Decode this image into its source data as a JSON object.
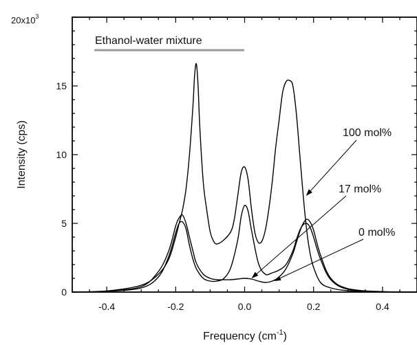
{
  "chart_data": {
    "type": "line",
    "title": "Ethanol-water mixture",
    "xlabel": {
      "text": "Frequency (cm",
      "sup": "-1",
      "suffix": ")"
    },
    "ylabel": "Intensity (cps)",
    "y_multiplier": {
      "base": "20x10",
      "exp": "3"
    },
    "xlim": [
      -0.5,
      0.5
    ],
    "ylim": [
      0,
      20000
    ],
    "x_ticks": [
      {
        "value": -0.4,
        "label": "-0.4"
      },
      {
        "value": -0.2,
        "label": "-0.2"
      },
      {
        "value": 0.0,
        "label": "0.0"
      },
      {
        "value": 0.2,
        "label": "0.2"
      },
      {
        "value": 0.4,
        "label": "0.4"
      }
    ],
    "y_ticks": [
      {
        "value": 0,
        "label": "0"
      },
      {
        "value": 5000,
        "label": "5"
      },
      {
        "value": 10000,
        "label": "10"
      },
      {
        "value": 15000,
        "label": "15"
      }
    ],
    "grid": false,
    "series": [
      {
        "name": "100 mol%",
        "x": [
          -0.5,
          -0.4,
          -0.3,
          -0.25,
          -0.22,
          -0.2,
          -0.19,
          -0.18,
          -0.17,
          -0.16,
          -0.15,
          -0.145,
          -0.14,
          -0.135,
          -0.13,
          -0.12,
          -0.11,
          -0.1,
          -0.09,
          -0.08,
          -0.06,
          -0.04,
          -0.03,
          -0.02,
          -0.01,
          0.0,
          0.01,
          0.02,
          0.03,
          0.04,
          0.05,
          0.06,
          0.07,
          0.08,
          0.09,
          0.1,
          0.11,
          0.12,
          0.13,
          0.14,
          0.15,
          0.16,
          0.17,
          0.18,
          0.19,
          0.2,
          0.22,
          0.25,
          0.3,
          0.4,
          0.5
        ],
        "y": [
          0,
          80,
          500,
          1300,
          2400,
          4000,
          5000,
          6000,
          7500,
          10000,
          13500,
          15800,
          16600,
          15000,
          12000,
          8000,
          6000,
          4400,
          3700,
          3500,
          3800,
          4400,
          5300,
          7000,
          8700,
          9100,
          8200,
          6000,
          4300,
          3600,
          3700,
          4500,
          6000,
          8000,
          10500,
          12500,
          14500,
          15300,
          15400,
          15000,
          13000,
          10000,
          7000,
          4500,
          2800,
          1800,
          700,
          300,
          100,
          30,
          0
        ]
      },
      {
        "name": "17 mol%",
        "x": [
          -0.5,
          -0.4,
          -0.3,
          -0.25,
          -0.22,
          -0.2,
          -0.19,
          -0.18,
          -0.17,
          -0.16,
          -0.15,
          -0.14,
          -0.12,
          -0.1,
          -0.08,
          -0.06,
          -0.04,
          -0.02,
          -0.01,
          0.0,
          0.01,
          0.02,
          0.04,
          0.06,
          0.08,
          0.1,
          0.12,
          0.14,
          0.15,
          0.16,
          0.17,
          0.18,
          0.19,
          0.2,
          0.22,
          0.25,
          0.3,
          0.4,
          0.5
        ],
        "y": [
          0,
          60,
          300,
          1100,
          2600,
          4300,
          5000,
          5100,
          4600,
          3400,
          2400,
          1700,
          1000,
          800,
          800,
          1000,
          1800,
          3800,
          5500,
          6300,
          5900,
          4500,
          2100,
          1300,
          1400,
          1600,
          2000,
          3000,
          3800,
          4500,
          4900,
          5000,
          4700,
          4000,
          2400,
          900,
          200,
          30,
          0
        ]
      },
      {
        "name": "0 mol%",
        "x": [
          -0.5,
          -0.4,
          -0.3,
          -0.25,
          -0.22,
          -0.2,
          -0.19,
          -0.18,
          -0.17,
          -0.16,
          -0.15,
          -0.14,
          -0.12,
          -0.1,
          -0.08,
          -0.06,
          -0.04,
          -0.02,
          0.0,
          0.02,
          0.04,
          0.06,
          0.08,
          0.1,
          0.12,
          0.14,
          0.15,
          0.16,
          0.17,
          0.18,
          0.19,
          0.2,
          0.22,
          0.25,
          0.3,
          0.4,
          0.5
        ],
        "y": [
          0,
          80,
          400,
          1500,
          3000,
          4800,
          5400,
          5600,
          5000,
          4000,
          3000,
          2100,
          1300,
          1000,
          900,
          900,
          900,
          950,
          1000,
          950,
          800,
          700,
          800,
          1100,
          1700,
          2800,
          3600,
          4400,
          5000,
          5300,
          5100,
          4500,
          2700,
          1000,
          250,
          30,
          0
        ]
      }
    ],
    "annotations": [
      {
        "text": "Ethanol-water mixture",
        "underline_color": "#9a9a9a"
      },
      {
        "text": "100 mol%",
        "points_to_x": 0.178,
        "points_to_y": 7000
      },
      {
        "text": "17 mol%",
        "points_to_x": 0.02,
        "points_to_y": 1000
      },
      {
        "text": "0 mol%",
        "points_to_x": 0.085,
        "points_to_y": 800
      }
    ]
  }
}
